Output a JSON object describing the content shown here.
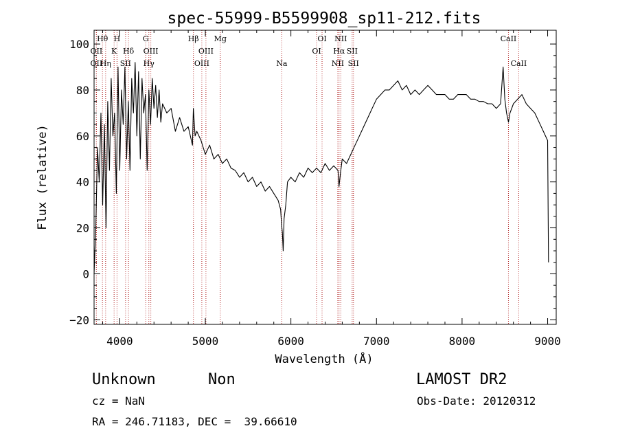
{
  "chart_data": {
    "type": "line",
    "title": "spec-55999-B5599908_sp11-212.fits",
    "xlabel": "Wavelength (Å)",
    "ylabel": "Flux (relative)",
    "xlim": [
      3700,
      9100
    ],
    "ylim": [
      -22,
      106
    ],
    "x_ticks": [
      4000,
      5000,
      6000,
      7000,
      8000,
      9000
    ],
    "y_ticks": [
      -20,
      0,
      20,
      40,
      60,
      80,
      100
    ],
    "series": [
      {
        "color": "#000000",
        "x": [
          3700,
          3720,
          3740,
          3760,
          3780,
          3800,
          3820,
          3840,
          3860,
          3880,
          3900,
          3920,
          3940,
          3960,
          3980,
          4000,
          4020,
          4040,
          4060,
          4080,
          4100,
          4120,
          4140,
          4160,
          4180,
          4200,
          4220,
          4240,
          4260,
          4280,
          4300,
          4320,
          4340,
          4360,
          4380,
          4400,
          4420,
          4440,
          4460,
          4480,
          4500,
          4550,
          4600,
          4650,
          4700,
          4750,
          4800,
          4850,
          4860,
          4880,
          4900,
          4950,
          5000,
          5050,
          5100,
          5150,
          5200,
          5250,
          5300,
          5350,
          5400,
          5450,
          5500,
          5550,
          5600,
          5650,
          5700,
          5750,
          5800,
          5850,
          5880,
          5890,
          5900,
          5910,
          5920,
          5940,
          5960,
          6000,
          6050,
          6100,
          6150,
          6200,
          6250,
          6300,
          6350,
          6400,
          6450,
          6500,
          6550,
          6562,
          6580,
          6600,
          6650,
          6700,
          6750,
          6800,
          6850,
          6900,
          6950,
          7000,
          7050,
          7100,
          7150,
          7200,
          7250,
          7300,
          7350,
          7400,
          7450,
          7500,
          7550,
          7600,
          7650,
          7700,
          7750,
          7800,
          7850,
          7900,
          7950,
          8000,
          8050,
          8100,
          8150,
          8200,
          8250,
          8300,
          8350,
          8400,
          8450,
          8480,
          8500,
          8520,
          8542,
          8560,
          8600,
          8650,
          8700,
          8750,
          8800,
          8850,
          8900,
          8950,
          9000,
          9010
        ],
        "y": [
          0,
          20,
          55,
          40,
          70,
          30,
          65,
          20,
          75,
          45,
          85,
          60,
          70,
          35,
          90,
          45,
          80,
          65,
          90,
          50,
          75,
          45,
          85,
          70,
          92,
          60,
          88,
          50,
          85,
          70,
          78,
          45,
          80,
          65,
          85,
          72,
          82,
          68,
          80,
          66,
          74,
          70,
          72,
          62,
          68,
          62,
          64,
          56,
          72,
          60,
          62,
          58,
          52,
          56,
          50,
          52,
          48,
          50,
          46,
          45,
          42,
          44,
          40,
          42,
          38,
          40,
          36,
          38,
          35,
          32,
          28,
          22,
          18,
          10,
          24,
          30,
          40,
          42,
          40,
          44,
          42,
          46,
          44,
          46,
          44,
          48,
          45,
          47,
          45,
          38,
          44,
          50,
          48,
          52,
          56,
          60,
          64,
          68,
          72,
          76,
          78,
          80,
          80,
          82,
          84,
          80,
          82,
          78,
          80,
          78,
          80,
          82,
          80,
          78,
          78,
          78,
          76,
          76,
          78,
          78,
          78,
          76,
          76,
          75,
          75,
          74,
          74,
          72,
          74,
          90,
          76,
          70,
          66,
          70,
          74,
          76,
          78,
          74,
          72,
          70,
          66,
          62,
          58,
          5
        ]
      }
    ],
    "line_markers": [
      {
        "label": "Hθ",
        "wave": 3798,
        "row": 0
      },
      {
        "label": "OII",
        "wave": 3727,
        "row": 1
      },
      {
        "label": "OII",
        "wave": 3727,
        "row": 2
      },
      {
        "label": "Hη",
        "wave": 3835,
        "row": 2
      },
      {
        "label": "H",
        "wave": 3968,
        "row": 0
      },
      {
        "label": "K",
        "wave": 3934,
        "row": 1
      },
      {
        "label": "Hδ",
        "wave": 4102,
        "row": 1
      },
      {
        "label": "SII",
        "wave": 4068,
        "row": 2
      },
      {
        "label": "G",
        "wave": 4304,
        "row": 0
      },
      {
        "label": "OIII",
        "wave": 4363,
        "row": 1
      },
      {
        "label": "Hγ",
        "wave": 4340,
        "row": 2
      },
      {
        "label": "Hβ",
        "wave": 4861,
        "row": 0
      },
      {
        "label": "OIII",
        "wave": 5007,
        "row": 1
      },
      {
        "label": "OIII",
        "wave": 4959,
        "row": 2
      },
      {
        "label": "Mg",
        "wave": 5175,
        "row": 0
      },
      {
        "label": "Na",
        "wave": 5893,
        "row": 2
      },
      {
        "label": "OI",
        "wave": 6364,
        "row": 0
      },
      {
        "label": "OI",
        "wave": 6300,
        "row": 1
      },
      {
        "label": "NII",
        "wave": 6583,
        "row": 0
      },
      {
        "label": "Hα",
        "wave": 6563,
        "row": 1
      },
      {
        "label": "SII",
        "wave": 6716,
        "row": 1
      },
      {
        "label": "NII",
        "wave": 6548,
        "row": 2
      },
      {
        "label": "SII",
        "wave": 6731,
        "row": 2
      },
      {
        "label": "CaII",
        "wave": 8542,
        "row": 0
      },
      {
        "label": "CaII",
        "wave": 8662,
        "row": 2
      }
    ]
  },
  "info": {
    "class": "Unknown",
    "subclass": "Non",
    "survey": "LAMOST DR2",
    "cz": "cz = NaN",
    "obs_date": "Obs-Date: 20120312",
    "coords": "RA = 246.71183, DEC =  39.66610"
  }
}
